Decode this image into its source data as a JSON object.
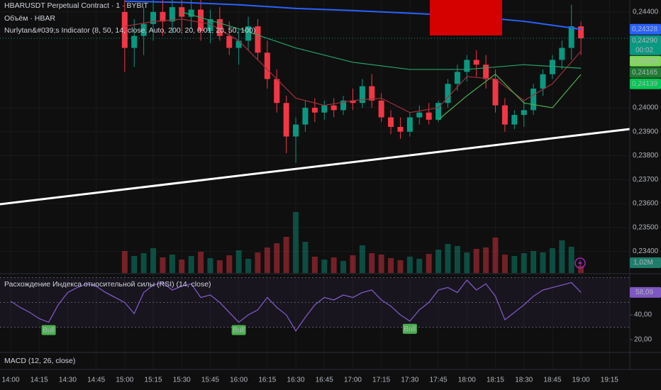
{
  "header": {
    "symbol": "HBARUSDT Perpetual Contract · 1 · BYBIT",
    "volume_title": "Объём · HBAR",
    "indicator_title": "Nurlytan&#039;s Indicator (8, 50, 14, close, Auto, 200, 20, 0.01, 20, 50, 100)",
    "macd_title": "MACD (12, 26, close)"
  },
  "chart_data": [
    {
      "type": "candlestick",
      "up_color": "#089981",
      "down_color": "#f23645",
      "x": [
        60,
        65,
        70,
        75,
        80,
        85,
        90,
        95,
        100,
        105,
        110,
        115,
        120,
        125,
        130,
        135,
        140,
        145,
        150,
        155,
        160,
        165,
        170,
        175,
        180,
        185,
        190,
        195,
        200,
        205,
        210,
        215,
        220,
        225,
        230,
        235,
        240,
        245,
        250,
        255,
        260,
        265,
        270,
        275,
        280,
        285,
        290,
        295,
        300
      ],
      "open": [
        0.244,
        0.2425,
        0.243,
        0.2435,
        0.244,
        0.2436,
        0.2442,
        0.2438,
        0.2441,
        0.2432,
        0.2437,
        0.243,
        0.2425,
        0.2428,
        0.2434,
        0.2423,
        0.2412,
        0.2402,
        0.2388,
        0.2393,
        0.24,
        0.2398,
        0.2401,
        0.2399,
        0.2403,
        0.2402,
        0.2409,
        0.2403,
        0.2396,
        0.2392,
        0.239,
        0.2396,
        0.2398,
        0.2395,
        0.2402,
        0.241,
        0.2415,
        0.242,
        0.2418,
        0.2412,
        0.2401,
        0.2393,
        0.2397,
        0.2399,
        0.2408,
        0.2414,
        0.242,
        0.2425,
        0.2434
      ],
      "high": [
        0.2445,
        0.2437,
        0.2442,
        0.2445,
        0.2445,
        0.2445,
        0.2445,
        0.2445,
        0.2445,
        0.2441,
        0.2442,
        0.2436,
        0.2433,
        0.2438,
        0.2437,
        0.2428,
        0.2416,
        0.2405,
        0.2396,
        0.2403,
        0.2404,
        0.2403,
        0.2404,
        0.2405,
        0.2408,
        0.2412,
        0.2414,
        0.2406,
        0.2399,
        0.2396,
        0.2398,
        0.2401,
        0.2402,
        0.2403,
        0.2412,
        0.2418,
        0.2422,
        0.2424,
        0.2422,
        0.2416,
        0.2404,
        0.2399,
        0.2403,
        0.241,
        0.2416,
        0.2422,
        0.2428,
        0.2443,
        0.2436
      ],
      "low": [
        0.2415,
        0.2417,
        0.2422,
        0.2428,
        0.243,
        0.2431,
        0.2432,
        0.2433,
        0.2428,
        0.2427,
        0.2428,
        0.2422,
        0.2418,
        0.2424,
        0.242,
        0.2408,
        0.2398,
        0.2381,
        0.2377,
        0.239,
        0.2394,
        0.2395,
        0.2396,
        0.2397,
        0.2399,
        0.24,
        0.24,
        0.2394,
        0.2389,
        0.2387,
        0.2388,
        0.2393,
        0.2393,
        0.2394,
        0.24,
        0.2407,
        0.2411,
        0.2413,
        0.2408,
        0.2398,
        0.239,
        0.2391,
        0.2392,
        0.2397,
        0.2405,
        0.2412,
        0.2416,
        0.242,
        0.2422
      ],
      "close": [
        0.2425,
        0.243,
        0.2435,
        0.244,
        0.2436,
        0.2442,
        0.2438,
        0.2441,
        0.2432,
        0.2437,
        0.243,
        0.2425,
        0.2428,
        0.2434,
        0.2423,
        0.2412,
        0.2402,
        0.2388,
        0.2393,
        0.24,
        0.2398,
        0.2401,
        0.2399,
        0.2403,
        0.2402,
        0.2409,
        0.2403,
        0.2396,
        0.2392,
        0.239,
        0.2396,
        0.2398,
        0.2395,
        0.2402,
        0.241,
        0.2415,
        0.242,
        0.2418,
        0.2412,
        0.2401,
        0.2393,
        0.2397,
        0.2399,
        0.2408,
        0.2414,
        0.242,
        0.2425,
        0.2434,
        0.2429
      ],
      "lines": [
        {
          "color": "#2962ff",
          "x": [
            60,
            90,
            120,
            150,
            180,
            210,
            240,
            270,
            300
          ],
          "values": [
            0.24445,
            0.2444,
            0.2443,
            0.24415,
            0.24406,
            0.24395,
            0.24383,
            0.24361,
            0.24328
          ]
        },
        {
          "color": "#a0303a",
          "x": [
            60,
            75,
            90,
            105,
            120,
            135,
            150,
            165,
            180,
            195,
            210,
            225,
            240,
            255,
            270,
            285,
            300
          ],
          "values": [
            0.2434,
            0.2436,
            0.2437,
            0.2435,
            0.2428,
            0.2416,
            0.2404,
            0.2401,
            0.2403,
            0.2404,
            0.2398,
            0.24,
            0.2413,
            0.2412,
            0.2403,
            0.241,
            0.24236
          ]
        },
        {
          "color": "#26a269",
          "x": [
            90,
            120,
            150,
            180,
            210,
            240,
            270,
            300
          ],
          "values": [
            0.244,
            0.2433,
            0.2425,
            0.2419,
            0.2416,
            0.2416,
            0.2418,
            0.24165
          ]
        },
        {
          "color": "#4caf50",
          "x": [
            225,
            240,
            255,
            270,
            285,
            300
          ],
          "values": [
            0.2395,
            0.2405,
            0.2414,
            0.2402,
            0.24,
            0.24139
          ]
        }
      ],
      "price_tags": [
        {
          "value": 0.24328,
          "label": "0,24328",
          "color": "#2962ff"
        },
        {
          "value": 0.2429,
          "label": "0,24290",
          "color": "#089981"
        },
        {
          "value": 0.24236,
          "label": "0,24236",
          "color": "#7ed957"
        },
        {
          "value": 0.24165,
          "label": "0,24165",
          "color": "#1e7d32"
        },
        {
          "value": 0.24139,
          "label": "0,24139",
          "color": "#00c853"
        }
      ],
      "countdown": "00:02",
      "xlim": [
        -5.6,
        325.7
      ],
      "xticks": [
        {
          "value": 0,
          "label": "14:00"
        },
        {
          "value": 15,
          "label": "14:15"
        },
        {
          "value": 30,
          "label": "14:30"
        },
        {
          "value": 45,
          "label": "14:45"
        },
        {
          "value": 60,
          "label": "15:00"
        },
        {
          "value": 75,
          "label": "15:15"
        },
        {
          "value": 90,
          "label": "15:30"
        },
        {
          "value": 105,
          "label": "15:45"
        },
        {
          "value": 120,
          "label": "16:00"
        },
        {
          "value": 135,
          "label": "16:15"
        },
        {
          "value": 150,
          "label": "16:30"
        },
        {
          "value": 165,
          "label": "16:45"
        },
        {
          "value": 180,
          "label": "17:00"
        },
        {
          "value": 195,
          "label": "17:15"
        },
        {
          "value": 210,
          "label": "17:30"
        },
        {
          "value": 225,
          "label": "17:45"
        },
        {
          "value": 240,
          "label": "18:00"
        },
        {
          "value": 255,
          "label": "18:15"
        },
        {
          "value": 270,
          "label": "18:30"
        },
        {
          "value": 285,
          "label": "18:45"
        },
        {
          "value": 300,
          "label": "19:00"
        },
        {
          "value": 315,
          "label": "19:15"
        }
      ],
      "ylim": [
        0.2331,
        0.2445
      ],
      "yticks": [
        {
          "value": 0.244,
          "label": "0,24400"
        },
        {
          "value": 0.24,
          "label": "0,24000"
        },
        {
          "value": 0.239,
          "label": "0,23900"
        },
        {
          "value": 0.238,
          "label": "0,23800"
        },
        {
          "value": 0.237,
          "label": "0,23700"
        },
        {
          "value": 0.236,
          "label": "0,23600"
        },
        {
          "value": 0.235,
          "label": "0,23500"
        },
        {
          "value": 0.234,
          "label": "0,23400"
        }
      ],
      "grid": true
    },
    {
      "type": "bar",
      "values": [
        3.1,
        2.4,
        2.8,
        3.5,
        2.2,
        2.6,
        1.9,
        2.4,
        3.0,
        2.1,
        1.8,
        2.5,
        3.2,
        2.0,
        2.9,
        3.6,
        4.2,
        5.1,
        8.6,
        4.4,
        2.3,
        1.9,
        2.2,
        1.7,
        2.5,
        3.9,
        2.8,
        2.6,
        2.1,
        1.8,
        2.3,
        2.0,
        2.7,
        3.3,
        4.1,
        3.8,
        2.9,
        3.4,
        3.6,
        5.0,
        2.6,
        2.4,
        2.8,
        3.1,
        2.9,
        3.5,
        4.6,
        3.7,
        1.02
      ],
      "ylim": [
        0,
        10
      ],
      "tag": {
        "value": 1.02,
        "label": "1,02M",
        "color": "#1e7d6b"
      }
    },
    {
      "type": "line",
      "title": "Расхождение Индекса относительной силы (RSI) (14, close)",
      "color": "#7e57c2",
      "x": [
        0,
        5,
        10,
        15,
        20,
        25,
        30,
        35,
        40,
        45,
        50,
        55,
        60,
        65,
        70,
        75,
        80,
        85,
        90,
        95,
        100,
        105,
        110,
        115,
        120,
        125,
        130,
        135,
        140,
        145,
        150,
        155,
        160,
        165,
        170,
        175,
        180,
        185,
        190,
        195,
        200,
        205,
        210,
        215,
        220,
        225,
        230,
        235,
        240,
        245,
        250,
        255,
        260,
        265,
        270,
        275,
        280,
        285,
        290,
        295,
        300
      ],
      "values": [
        51,
        46,
        42,
        37,
        34,
        48,
        58,
        62,
        65,
        63,
        58,
        54,
        50,
        41,
        58,
        64,
        66,
        60,
        63,
        65,
        54,
        56,
        50,
        42,
        34,
        40,
        44,
        54,
        46,
        40,
        27,
        38,
        48,
        54,
        52,
        56,
        54,
        58,
        60,
        52,
        47,
        40,
        35,
        44,
        50,
        60,
        62,
        58,
        68,
        60,
        65,
        55,
        36,
        42,
        48,
        55,
        60,
        62,
        64,
        66,
        58.09
      ],
      "ylim": [
        9.71,
        70.86
      ],
      "yticks": [
        {
          "value": 40,
          "label": "40,00"
        },
        {
          "value": 20,
          "label": "20,00"
        }
      ],
      "bands": [
        70,
        50,
        30
      ],
      "annotations": [
        {
          "x": 20,
          "y": 34,
          "label": "Bull"
        },
        {
          "x": 120,
          "y": 34,
          "label": "Bull"
        },
        {
          "x": 210,
          "y": 35,
          "label": "Bull"
        }
      ],
      "tag": {
        "value": 58.09,
        "label": "58,09",
        "color": "#7e57c2"
      }
    }
  ]
}
